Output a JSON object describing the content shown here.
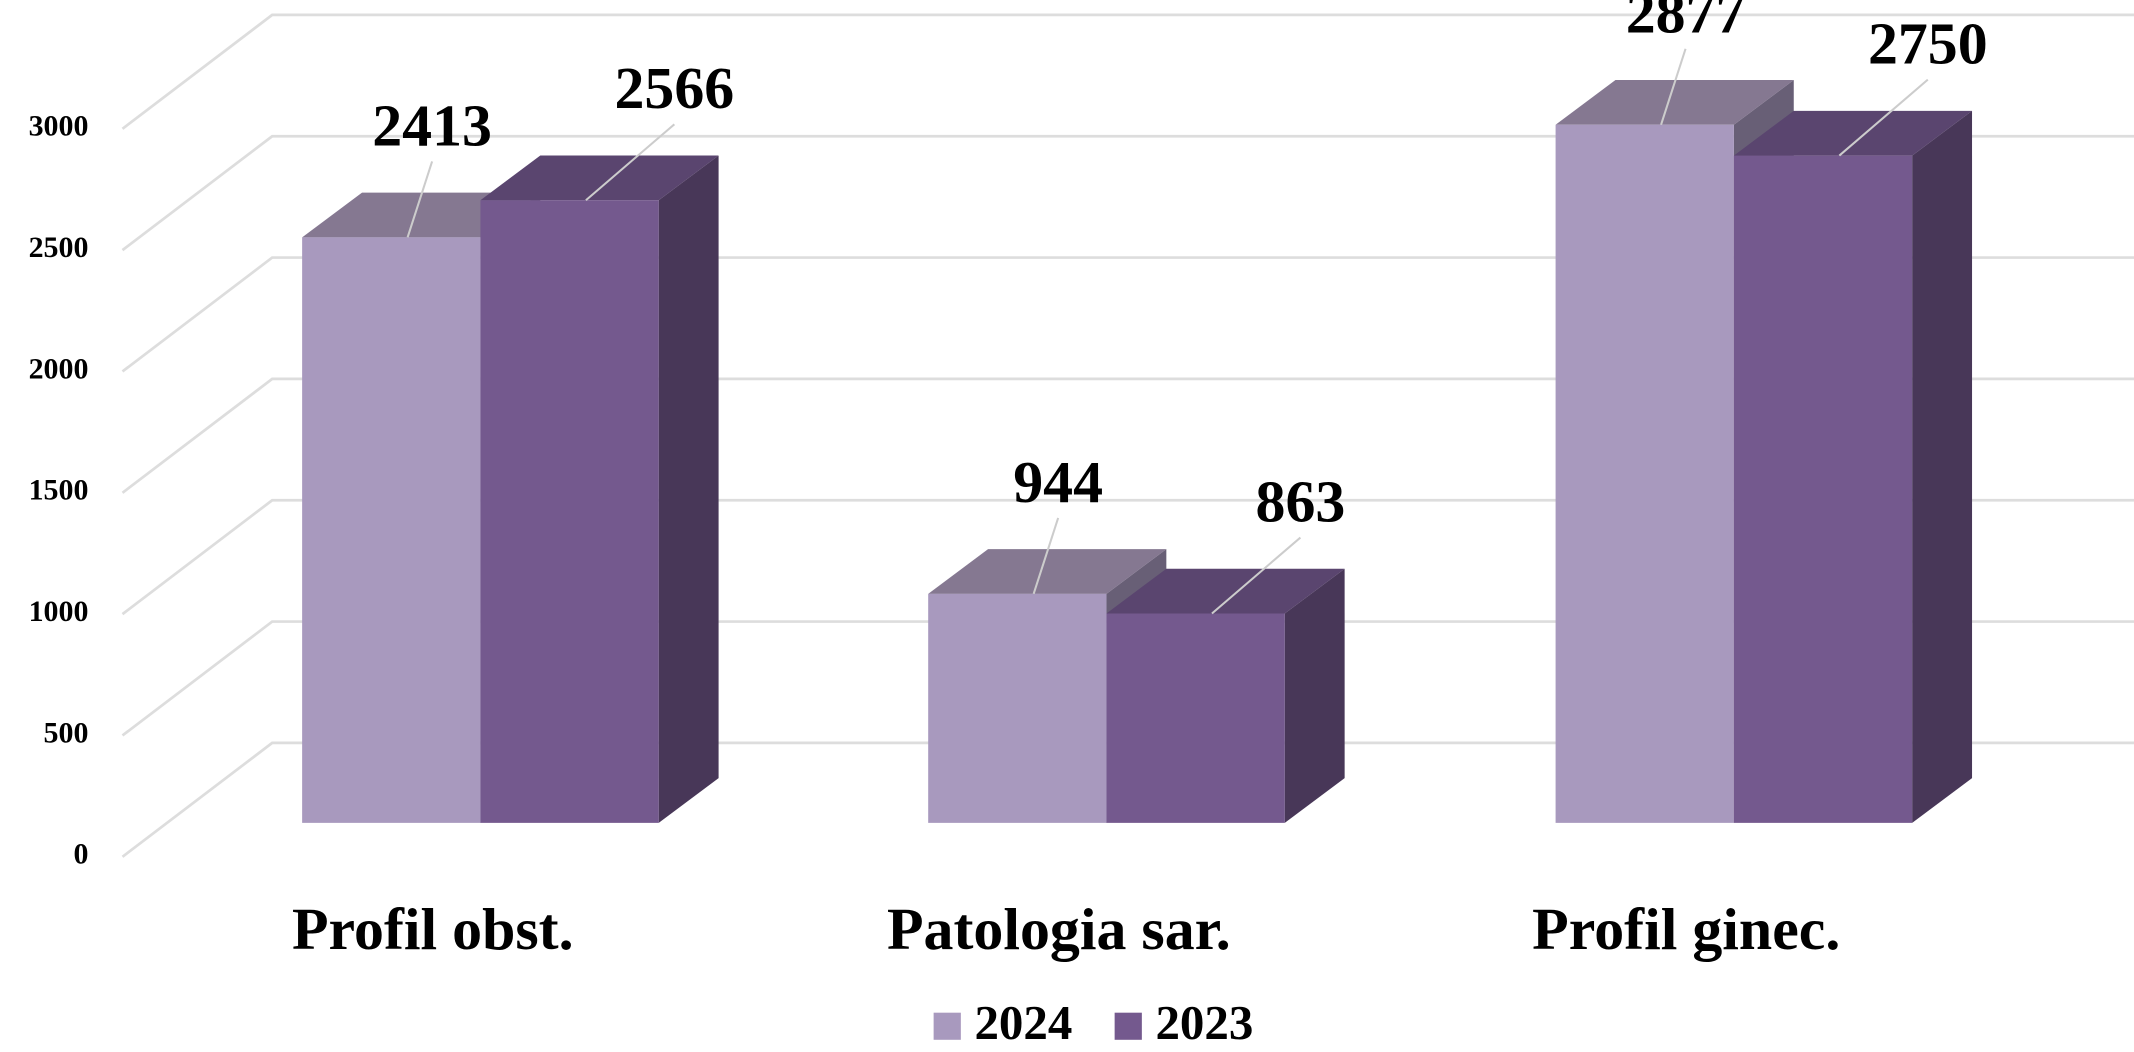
{
  "chart_data": {
    "type": "bar3d",
    "categories": [
      "Profil obst.",
      "Patologia sar.",
      "Profil ginec."
    ],
    "series": [
      {
        "name": "2024",
        "color": "#a899be",
        "values": [
          2413,
          944,
          2877
        ]
      },
      {
        "name": "2023",
        "color": "#74598e",
        "values": [
          2566,
          863,
          2750
        ]
      }
    ],
    "ylim": [
      0,
      3000
    ],
    "yticks": [
      0,
      500,
      1000,
      1500,
      2000,
      2500,
      3000
    ],
    "grid": true,
    "legend": "bottom"
  }
}
